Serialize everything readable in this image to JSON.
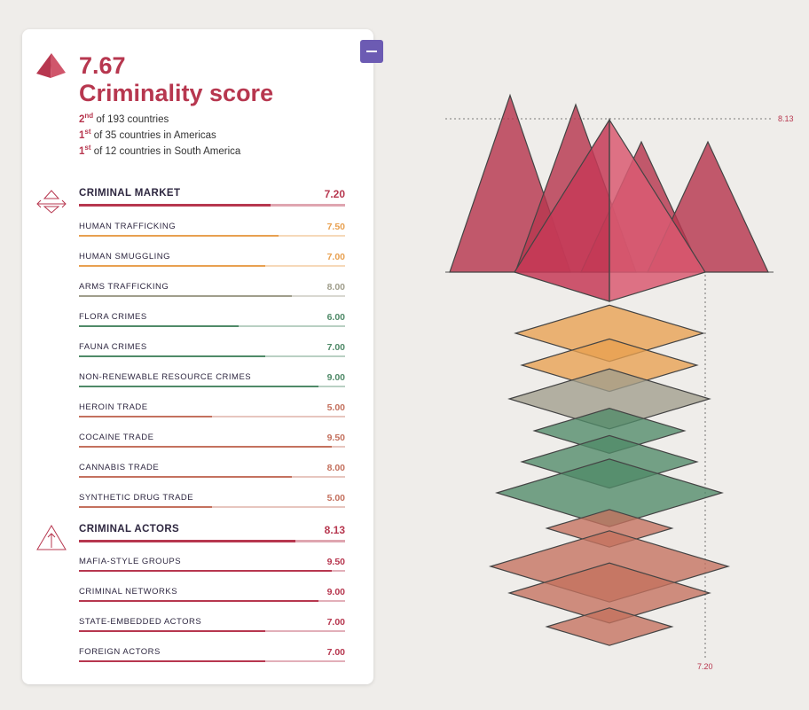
{
  "score": {
    "value": "7.67",
    "title": "Criminality score",
    "ranks": [
      {
        "ord": "2",
        "suffix": "nd",
        "text": " of 193 countries"
      },
      {
        "ord": "1",
        "suffix": "st",
        "text": " of 35 countries in Americas"
      },
      {
        "ord": "1",
        "suffix": "st",
        "text": " of 12 countries in South America"
      }
    ]
  },
  "colors": {
    "actors": "#b7374f",
    "trafficking": "#e8a050",
    "arms": "#a09e8c",
    "environment": "#4f8a68",
    "drugs": "#c4715e"
  },
  "chart_data": {
    "type": "bar",
    "scale_max": 10,
    "sections": [
      {
        "id": "market",
        "name": "CRIMINAL MARKET",
        "value": 7.2,
        "value_label": "7.20",
        "color": "#b7374f",
        "icon": "market-scale-icon",
        "items": [
          {
            "name": "HUMAN TRAFFICKING",
            "value": 7.5,
            "value_label": "7.50",
            "color": "#e8a050"
          },
          {
            "name": "HUMAN SMUGGLING",
            "value": 7.0,
            "value_label": "7.00",
            "color": "#e8a050"
          },
          {
            "name": "ARMS TRAFFICKING",
            "value": 8.0,
            "value_label": "8.00",
            "color": "#a09e8c"
          },
          {
            "name": "FLORA CRIMES",
            "value": 6.0,
            "value_label": "6.00",
            "color": "#4f8a68"
          },
          {
            "name": "FAUNA CRIMES",
            "value": 7.0,
            "value_label": "7.00",
            "color": "#4f8a68"
          },
          {
            "name": "NON-RENEWABLE RESOURCE CRIMES",
            "value": 9.0,
            "value_label": "9.00",
            "color": "#4f8a68"
          },
          {
            "name": "HEROIN TRADE",
            "value": 5.0,
            "value_label": "5.00",
            "color": "#c4715e"
          },
          {
            "name": "COCAINE TRADE",
            "value": 9.5,
            "value_label": "9.50",
            "color": "#c4715e"
          },
          {
            "name": "CANNABIS TRADE",
            "value": 8.0,
            "value_label": "8.00",
            "color": "#c4715e"
          },
          {
            "name": "SYNTHETIC DRUG TRADE",
            "value": 5.0,
            "value_label": "5.00",
            "color": "#c4715e"
          }
        ]
      },
      {
        "id": "actors",
        "name": "CRIMINAL ACTORS",
        "value": 8.13,
        "value_label": "8.13",
        "color": "#b7374f",
        "icon": "actors-triangle-icon",
        "items": [
          {
            "name": "MAFIA-STYLE GROUPS",
            "value": 9.5,
            "value_label": "9.50",
            "color": "#b7374f"
          },
          {
            "name": "CRIMINAL NETWORKS",
            "value": 9.0,
            "value_label": "9.00",
            "color": "#b7374f"
          },
          {
            "name": "STATE-EMBEDDED ACTORS",
            "value": 7.0,
            "value_label": "7.00",
            "color": "#b7374f"
          },
          {
            "name": "FOREIGN ACTORS",
            "value": 7.0,
            "value_label": "7.00",
            "color": "#b7374f"
          }
        ]
      }
    ],
    "annotations": {
      "actors_line": "8.13",
      "market_line": "7.20"
    }
  }
}
